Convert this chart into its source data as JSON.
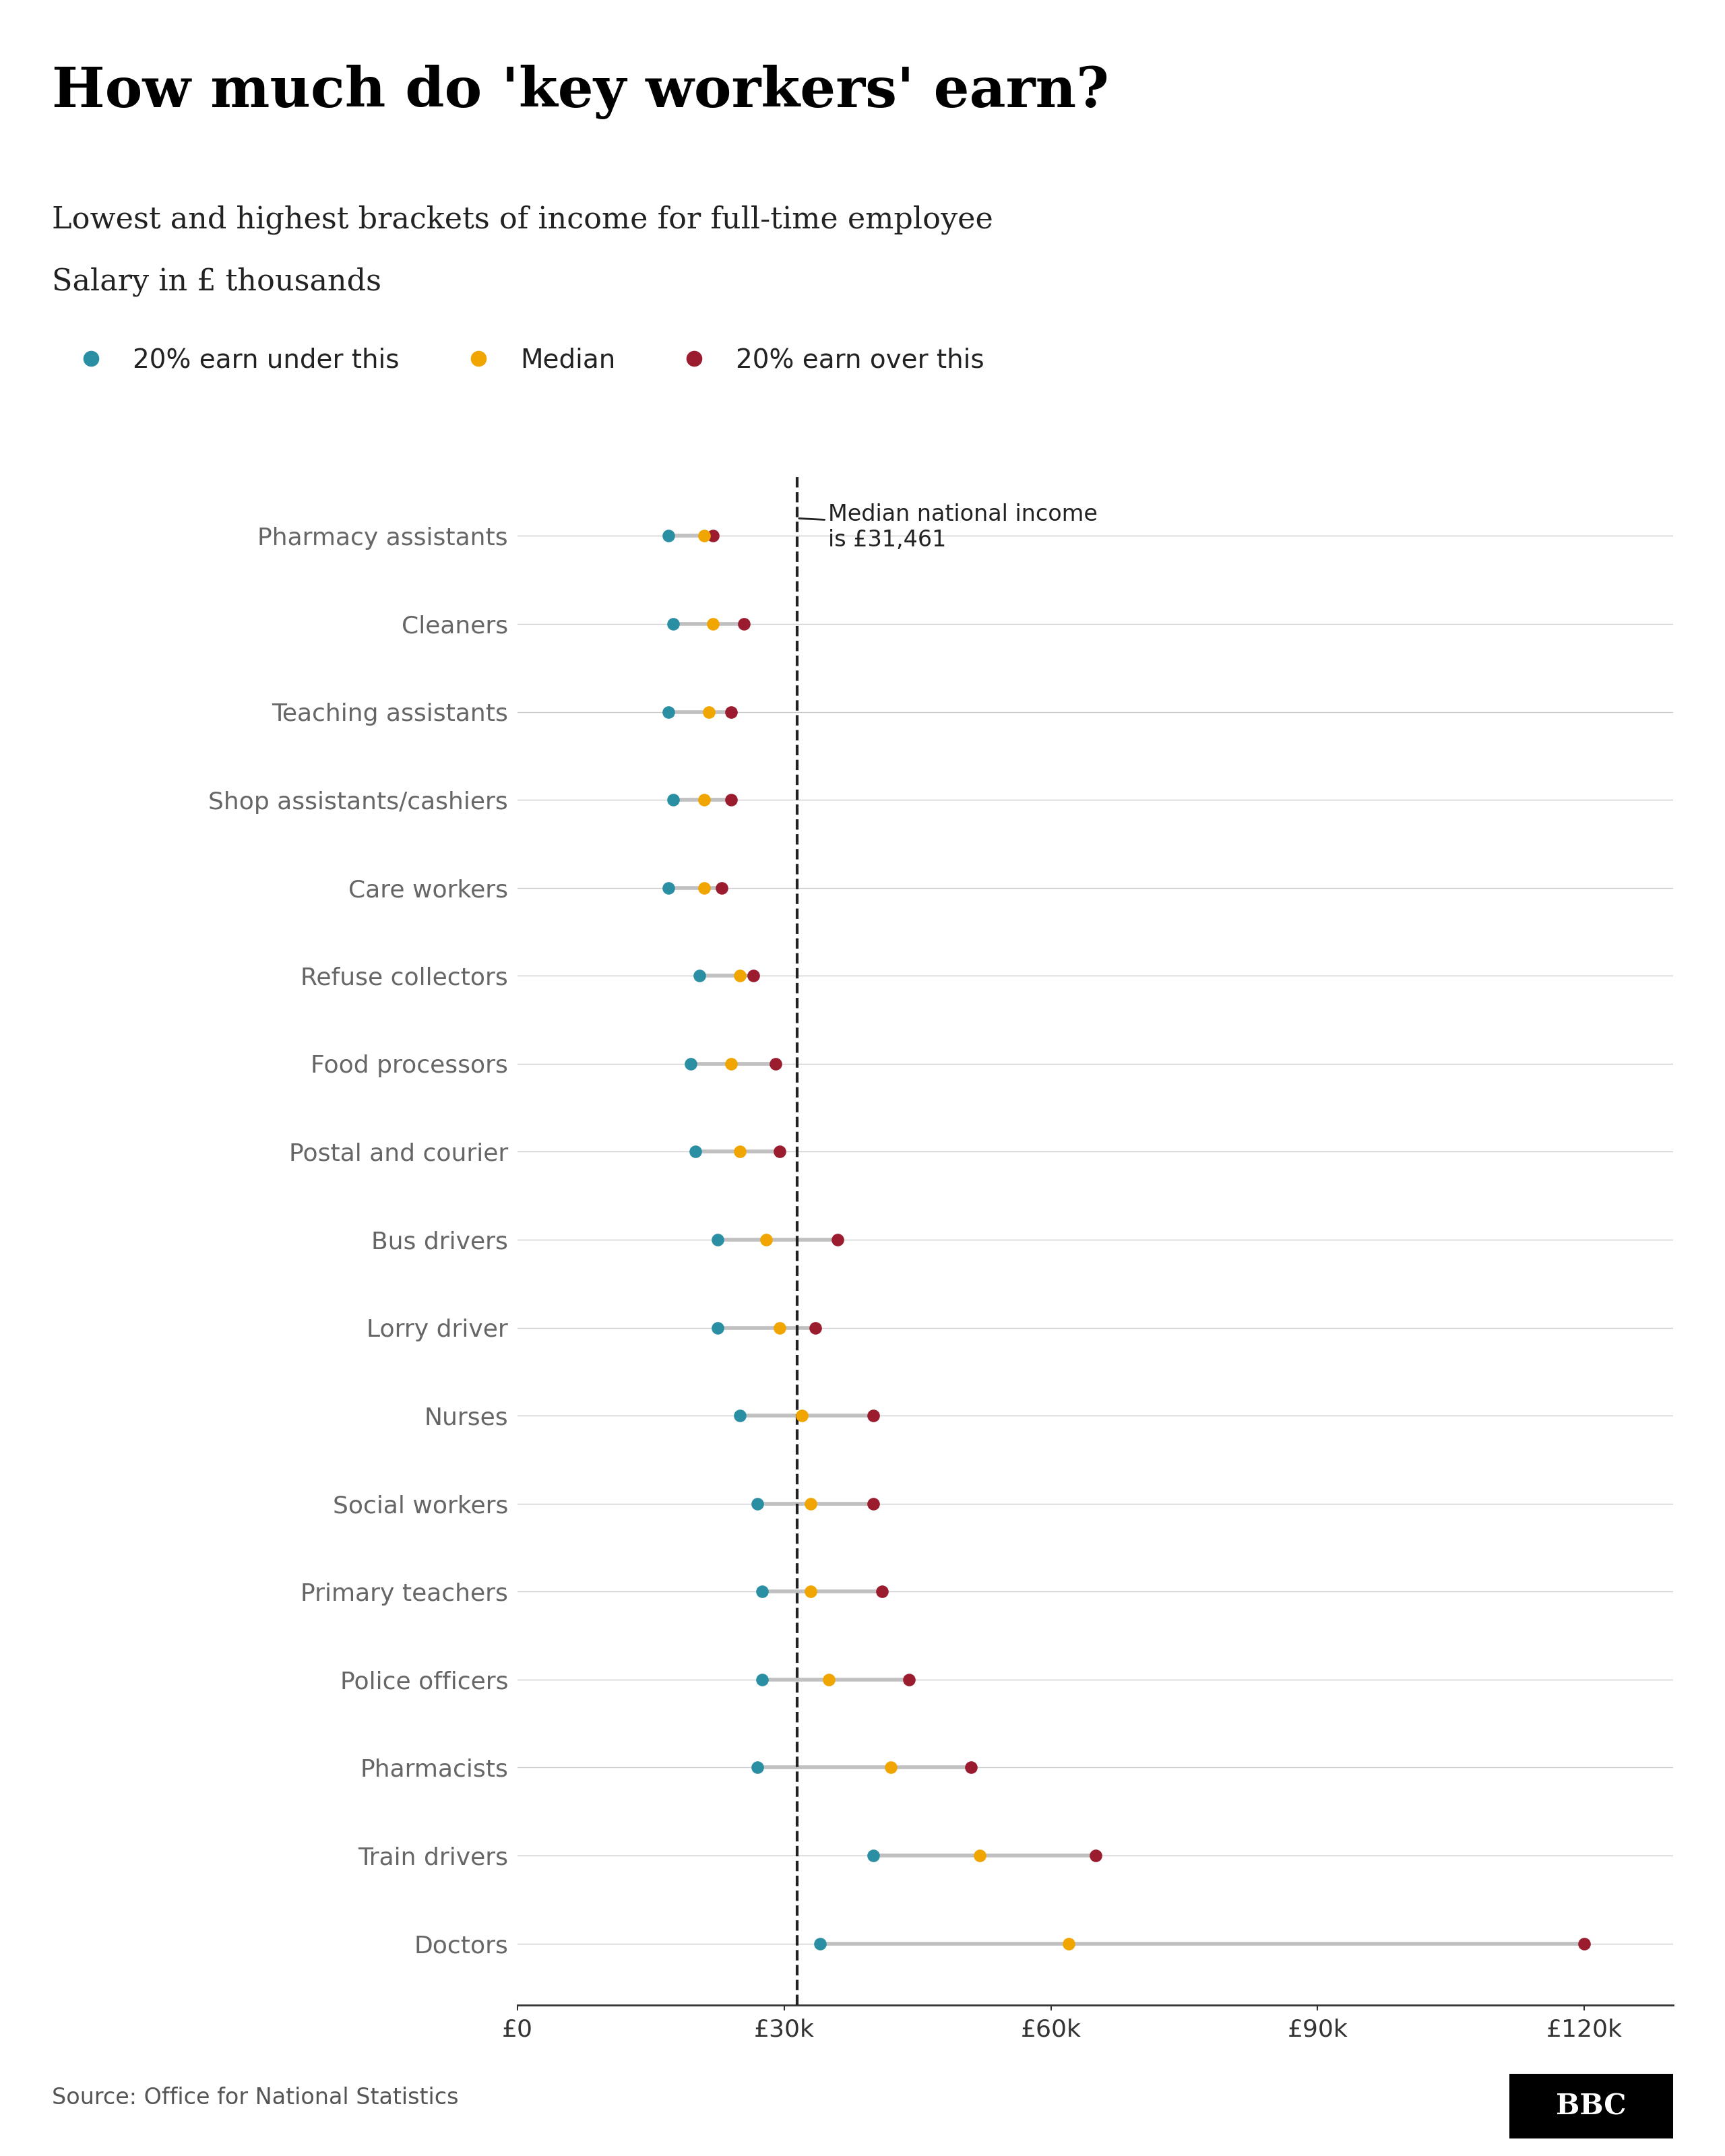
{
  "title": "How much do 'key workers' earn?",
  "subtitle1": "Lowest and highest brackets of income for full-time employee",
  "subtitle2": "Salary in £ thousands",
  "source": "Source: Office for National Statistics",
  "median_national": 31.461,
  "median_label": "Median national income\nis £31,461",
  "categories": [
    "Pharmacy assistants",
    "Cleaners",
    "Teaching assistants",
    "Shop assistants/cashiers",
    "Care workers",
    "Refuse collectors",
    "Food processors",
    "Postal and courier",
    "Bus drivers",
    "Lorry driver",
    "Nurses",
    "Social workers",
    "Primary teachers",
    "Police officers",
    "Pharmacists",
    "Train drivers",
    "Doctors"
  ],
  "p20": [
    17.0,
    17.5,
    17.0,
    17.5,
    17.0,
    20.5,
    19.5,
    20.0,
    22.5,
    22.5,
    25.0,
    27.0,
    27.5,
    27.5,
    27.0,
    40.0,
    34.0
  ],
  "median": [
    21.0,
    22.0,
    21.5,
    21.0,
    21.0,
    25.0,
    24.0,
    25.0,
    28.0,
    29.5,
    32.0,
    33.0,
    33.0,
    35.0,
    42.0,
    52.0,
    62.0
  ],
  "p80": [
    22.0,
    25.5,
    24.0,
    24.0,
    23.0,
    26.5,
    29.0,
    29.5,
    36.0,
    33.5,
    40.0,
    40.0,
    41.0,
    44.0,
    51.0,
    65.0,
    120.0
  ],
  "color_p20": "#2a8fa3",
  "color_median": "#f0a500",
  "color_p80": "#9b1c2e",
  "color_line": "#c0c0c0",
  "color_title": "#000000",
  "color_labels": "#666666",
  "color_gridline": "#cccccc",
  "xlim": [
    0,
    130
  ],
  "xticks": [
    0,
    30,
    60,
    90,
    120
  ],
  "xtick_labels": [
    "£0",
    "£30k",
    "£60k",
    "£90k",
    "£120k"
  ],
  "dot_size": 180,
  "background_color": "#ffffff",
  "legend_labels": [
    "20% earn under this",
    "Median",
    "20% earn over this"
  ]
}
